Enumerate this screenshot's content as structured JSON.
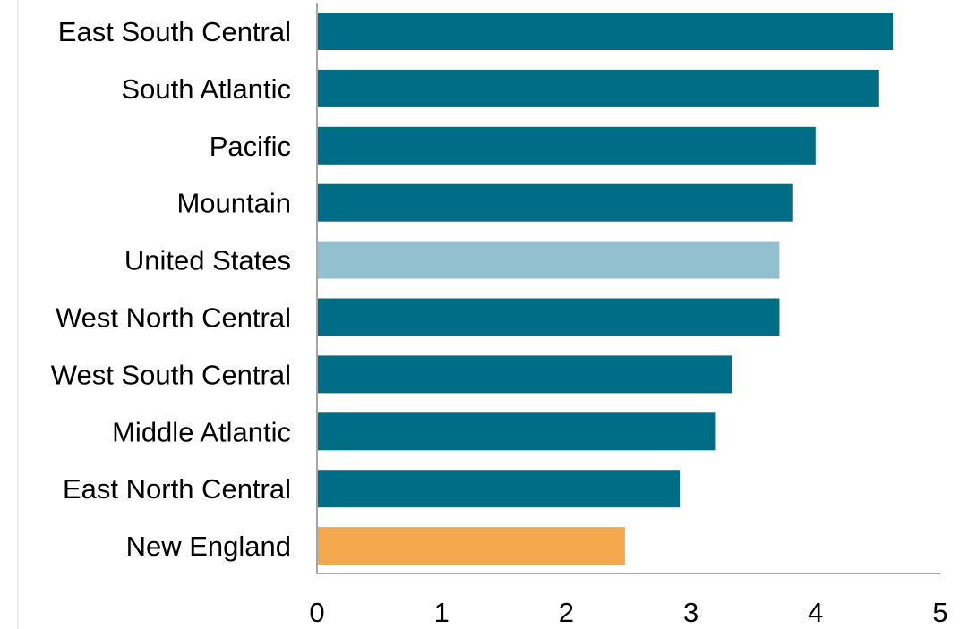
{
  "chart_data": {
    "type": "bar",
    "orientation": "horizontal",
    "title": "",
    "xlabel": "",
    "ylabel": "",
    "categories": [
      "East South Central",
      "South Atlantic",
      "Pacific",
      "Mountain",
      "United States",
      "West North Central",
      "West South Central",
      "Middle Atlantic",
      "East North Central",
      "New England"
    ],
    "values": [
      4.62,
      4.51,
      4.0,
      3.82,
      3.71,
      3.71,
      3.33,
      3.2,
      2.91,
      2.47
    ],
    "bar_colors": [
      "#006d87",
      "#006d87",
      "#006d87",
      "#006d87",
      "#93c0ce",
      "#006d87",
      "#006d87",
      "#006d87",
      "#006d87",
      "#f2a84b"
    ],
    "xlim": [
      0,
      5
    ],
    "xticks": [
      "0",
      "1",
      "2",
      "3",
      "4",
      "5"
    ],
    "grid": false,
    "legend": "none",
    "axis_color": "#a6a6a6"
  }
}
